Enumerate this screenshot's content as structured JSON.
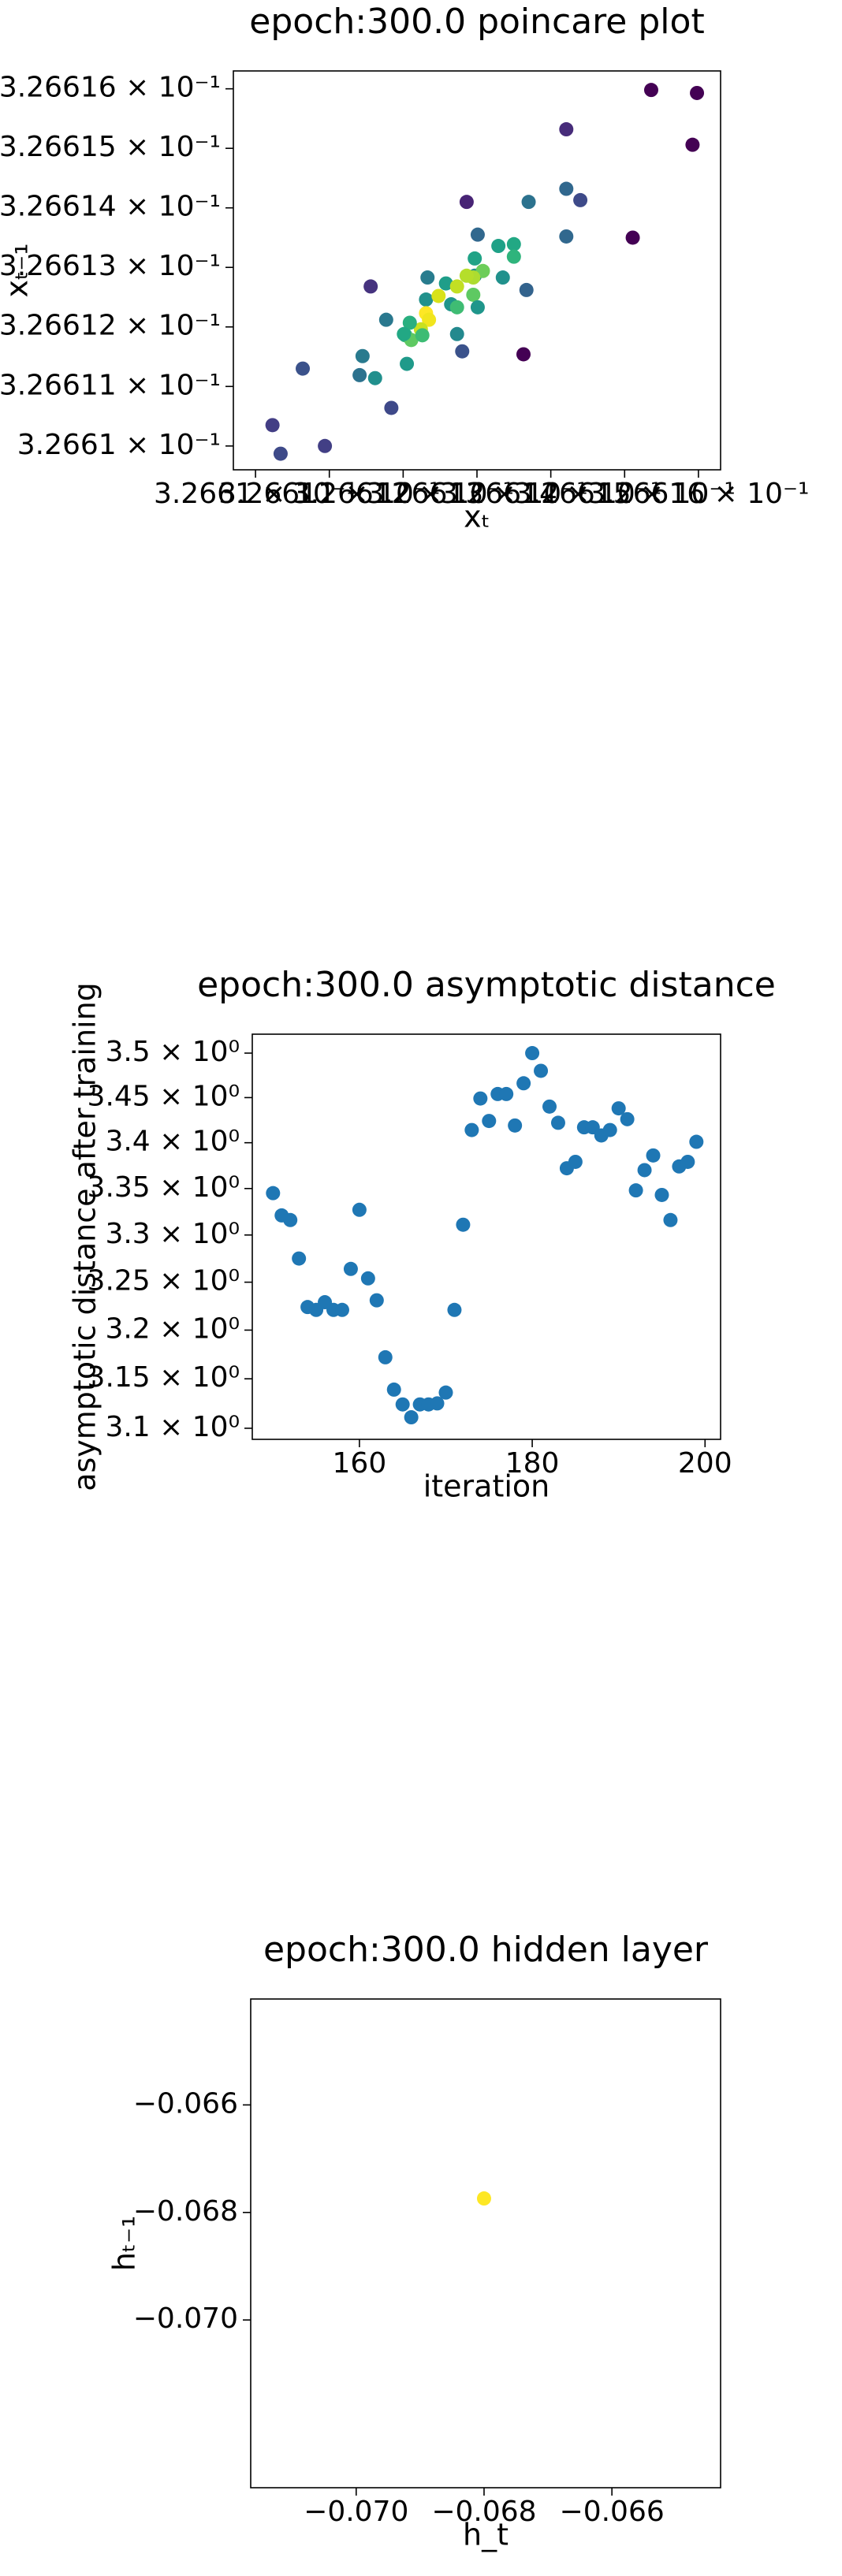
{
  "chart_data": [
    {
      "type": "scatter",
      "title": "epoch:300.0 poincare plot",
      "xlabel": "xₜ",
      "ylabel": "xₜ₋₁",
      "xscale": "log",
      "yscale": "log",
      "xlim": [
        0.3266097,
        0.3266163
      ],
      "ylim": [
        0.3266096,
        0.3266163
      ],
      "xticks": [
        {
          "value": 0.32661,
          "label": "3.2661 × 10⁻¹"
        },
        {
          "value": 0.326611,
          "label": "3.26611 × 10⁻¹"
        },
        {
          "value": 0.326612,
          "label": "3.26612 × 10⁻¹"
        },
        {
          "value": 0.326613,
          "label": "3.26613 × 10⁻¹"
        },
        {
          "value": 0.326614,
          "label": "3.26614 × 10⁻¹"
        },
        {
          "value": 0.326615,
          "label": "3.26615 × 10⁻¹"
        },
        {
          "value": 0.326616,
          "label": "3.26616 × 10⁻¹"
        }
      ],
      "yticks": [
        {
          "value": 0.32661,
          "label": "3.2661 × 10⁻¹"
        },
        {
          "value": 0.326611,
          "label": "3.26611 × 10⁻¹"
        },
        {
          "value": 0.326612,
          "label": "3.26612 × 10⁻¹"
        },
        {
          "value": 0.326613,
          "label": "3.26613 × 10⁻¹"
        },
        {
          "value": 0.326614,
          "label": "3.26614 × 10⁻¹"
        },
        {
          "value": 0.326615,
          "label": "3.26615 × 10⁻¹"
        },
        {
          "value": 0.326616,
          "label": "3.26616 × 10⁻¹"
        }
      ],
      "x": [
        0.32661536,
        0.32661598,
        0.32661592,
        0.32661421,
        0.32661511,
        0.32661421,
        0.3266144,
        0.32661421,
        0.3266137,
        0.32661286,
        0.32661301,
        0.32661329,
        0.3266135,
        0.32661297,
        0.3266135,
        0.32661335,
        0.32661297,
        0.32661308,
        0.32661295,
        0.32661286,
        0.32661367,
        0.32661156,
        0.32661233,
        0.32661258,
        0.32661273,
        0.32661231,
        0.32661248,
        0.32661295,
        0.32661265,
        0.32661231,
        0.32661235,
        0.32661224,
        0.32661273,
        0.32661209,
        0.32661177,
        0.32661301,
        0.32661203,
        0.32661211,
        0.32661226,
        0.32661273,
        0.32661201,
        0.32661145,
        0.32661363,
        0.3266128,
        0.32661205,
        0.32661141,
        0.32661162,
        0.32661064,
        0.32661184,
        0.32661023,
        0.32661034,
        0.32661094
      ],
      "values": [
        0.32661598,
        0.32661593,
        0.32661506,
        0.32661532,
        0.3266135,
        0.32661432,
        0.32661413,
        0.32661352,
        0.3266141,
        0.3266141,
        0.32661355,
        0.32661336,
        0.32661339,
        0.32661315,
        0.32661318,
        0.32661283,
        0.32661286,
        0.32661294,
        0.32661283,
        0.32661286,
        0.32661262,
        0.32661268,
        0.32661283,
        0.32661273,
        0.32661268,
        0.32661246,
        0.32661252,
        0.32661254,
        0.32661238,
        0.32661223,
        0.32661212,
        0.32661196,
        0.32661233,
        0.32661207,
        0.32661212,
        0.32661233,
        0.32661186,
        0.32661178,
        0.32661186,
        0.32661188,
        0.32661188,
        0.32661151,
        0.32661154,
        0.32661159,
        0.32661138,
        0.32661119,
        0.32661114,
        0.3266113,
        0.32661064,
        0.32661035,
        0.32660987,
        0.32661
      ],
      "colors": [
        "#440154",
        "#440154",
        "#440154",
        "#472c7a",
        "#440154",
        "#31688e",
        "#3e4a89",
        "#31688e",
        "#2c728e",
        "#482475",
        "#31688e",
        "#1fa187",
        "#22a884",
        "#20a386",
        "#2fb47c",
        "#21918c",
        "#21918c",
        "#6ccd5a",
        "#addc30",
        "#b5de2b",
        "#33638d",
        "#46337f",
        "#287c8e",
        "#1f9e89",
        "#c2df23",
        "#21918c",
        "#d8e219",
        "#5ec962",
        "#1f958b",
        "#fde725",
        "#f1e51d",
        "#c8e020",
        "#3fbc73",
        "#29af7f",
        "#2a788e",
        "#1f968b",
        "#35b779",
        "#5ec962",
        "#3dbc74",
        "#23898e",
        "#22a884",
        "#297a8e",
        "#440154",
        "#3b528b",
        "#1f9a8a",
        "#2c728e",
        "#21908d",
        "#3b528b",
        "#3e4989",
        "#433e85",
        "#3e4a89",
        "#423f85"
      ]
    },
    {
      "type": "scatter",
      "title": "epoch:300.0 asymptotic distance",
      "xlabel": "iteration",
      "ylabel": "asymptotic distance after training",
      "yscale": "log",
      "color": "#1f77b4",
      "xlim": [
        147.6,
        201.8
      ],
      "ylim": [
        3.0889,
        3.5215
      ],
      "xticks": [
        160,
        180,
        200
      ],
      "yticks": [
        {
          "value": 3.1,
          "label": "3.1 × 10⁰"
        },
        {
          "value": 3.15,
          "label": "3.15 × 10⁰"
        },
        {
          "value": 3.2,
          "label": "3.2 × 10⁰"
        },
        {
          "value": 3.25,
          "label": "3.25 × 10⁰"
        },
        {
          "value": 3.3,
          "label": "3.3 × 10⁰"
        },
        {
          "value": 3.35,
          "label": "3.35 × 10⁰"
        },
        {
          "value": 3.4,
          "label": "3.4 × 10⁰"
        },
        {
          "value": 3.45,
          "label": "3.45 × 10⁰"
        },
        {
          "value": 3.5,
          "label": "3.5 × 10⁰"
        }
      ],
      "x": [
        150,
        151,
        152,
        153,
        154,
        155,
        156,
        157,
        158,
        159,
        160,
        161,
        162,
        163,
        164,
        165,
        166,
        167,
        168,
        169,
        170,
        171,
        172,
        173,
        174,
        175,
        176,
        177,
        178,
        179,
        180,
        181,
        182,
        183,
        184,
        185,
        186,
        187,
        188,
        189,
        190,
        191,
        192,
        193,
        194,
        195,
        196,
        197,
        198,
        199
      ],
      "values": [
        3.345,
        3.321,
        3.316,
        3.275,
        3.224,
        3.221,
        3.229,
        3.221,
        3.221,
        3.264,
        3.327,
        3.254,
        3.231,
        3.172,
        3.139,
        3.124,
        3.111,
        3.124,
        3.124,
        3.125,
        3.136,
        3.221,
        3.311,
        3.414,
        3.449,
        3.424,
        3.454,
        3.454,
        3.419,
        3.466,
        3.5,
        3.48,
        3.44,
        3.422,
        3.372,
        3.379,
        3.417,
        3.417,
        3.408,
        3.414,
        3.438,
        3.426,
        3.348,
        3.37,
        3.386,
        3.343,
        3.316,
        3.374,
        3.379,
        3.401
      ]
    },
    {
      "type": "scatter",
      "title": "epoch:300.0 hidden layer",
      "xlabel": "h_t",
      "ylabel": "hₜ₋₁",
      "color": "#fde725",
      "xlim": [
        -0.07165,
        -0.0643
      ],
      "ylim": [
        -0.07312,
        -0.06403
      ],
      "xticks": [
        {
          "value": -0.07,
          "label": "−0.070"
        },
        {
          "value": -0.068,
          "label": "−0.068"
        },
        {
          "value": -0.066,
          "label": "−0.066"
        }
      ],
      "yticks": [
        {
          "value": -0.07,
          "label": "−0.070"
        },
        {
          "value": -0.068,
          "label": "−0.068"
        },
        {
          "value": -0.066,
          "label": "−0.066"
        }
      ],
      "x": [
        -0.068
      ],
      "values": [
        -0.06774
      ]
    }
  ]
}
